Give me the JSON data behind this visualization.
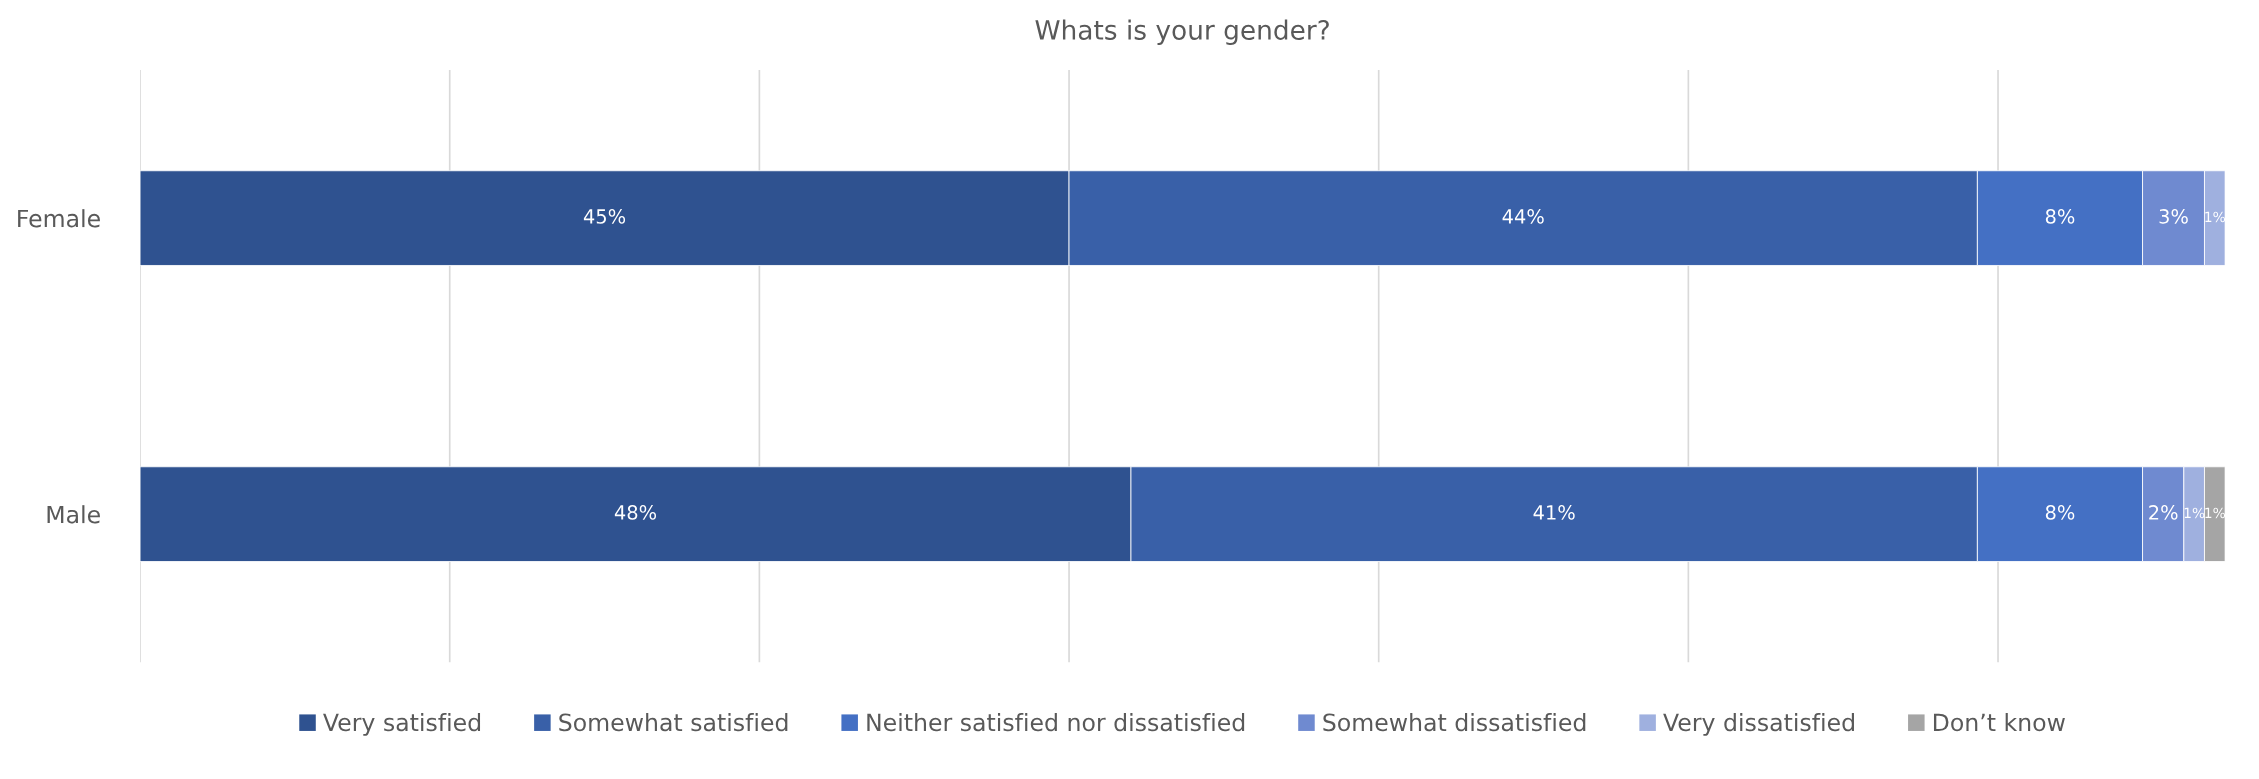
{
  "chart_data": {
    "type": "bar",
    "orientation": "horizontal",
    "stacked": true,
    "title": "Whats is your gender?",
    "categories": [
      "Female",
      "Male"
    ],
    "series": [
      {
        "name": "Very satisfied",
        "color": "#2f5290",
        "values": [
          45,
          48
        ],
        "value_labels": [
          "45%",
          "48%"
        ]
      },
      {
        "name": "Somewhat satisfied",
        "color": "#3960a8",
        "values": [
          44,
          41
        ],
        "value_labels": [
          "44%",
          "41%"
        ]
      },
      {
        "name": "Neither satisfied nor dissatisfied",
        "color": "#4470c4",
        "values": [
          8,
          8
        ],
        "value_labels": [
          "8%",
          "8%"
        ]
      },
      {
        "name": "Somewhat dissatisfied",
        "color": "#6f8ad0",
        "values": [
          3,
          2
        ],
        "value_labels": [
          "3%",
          "2%"
        ]
      },
      {
        "name": "Very dissatisfied",
        "color": "#9fb0df",
        "values": [
          1,
          1
        ],
        "value_labels": [
          "1%",
          "1%"
        ]
      },
      {
        "name": "Don’t know",
        "color": "#a5a5a5",
        "values": [
          null,
          1
        ],
        "value_labels": [
          null,
          "1%"
        ]
      }
    ],
    "tick_labels": "y",
    "grid": "x",
    "legend": "bottom"
  }
}
